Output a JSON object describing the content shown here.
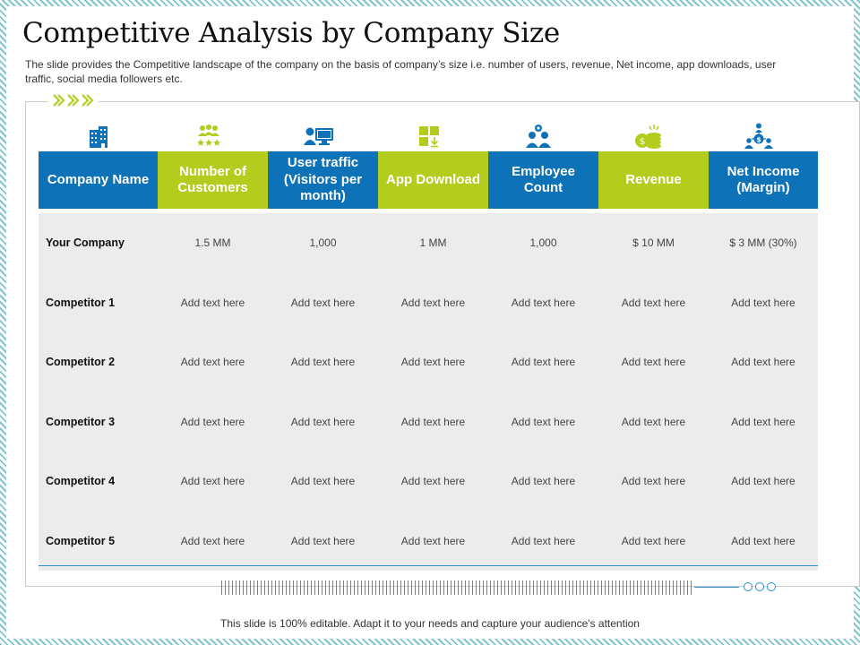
{
  "title": "Competitive Analysis by Company Size",
  "subtitle": "The slide provides  the Competitive  landscape of the company on the basis of company’s size i.e. number of users, revenue,  Net income, app downloads,  user traffic,  social media followers  etc.",
  "icons": [
    "building-icon",
    "people-stars-icon",
    "user-computer-icon",
    "app-download-icon",
    "employee-group-icon",
    "coins-revenue-icon",
    "net-income-people-icon"
  ],
  "table": {
    "headers": [
      "Company Name",
      "Number of Customers",
      "User traffic (Visitors per month)",
      "App Download",
      "Employee Count",
      "Revenue",
      "Net Income (Margin)"
    ],
    "header_colors": [
      "#0e72b8",
      "#b3cc1e",
      "#0e72b8",
      "#b3cc1e",
      "#0e72b8",
      "#b3cc1e",
      "#0e72b8"
    ],
    "rows": [
      [
        "Your Company",
        "1.5 MM",
        "1,000",
        "1 MM",
        "1,000",
        "$ 10 MM",
        "$ 3 MM (30%)"
      ],
      [
        "Competitor 1",
        "Add text here",
        "Add text here",
        "Add text here",
        "Add text here",
        "Add text here",
        "Add text here"
      ],
      [
        "Competitor 2",
        "Add text here",
        "Add text here",
        "Add text here",
        "Add text here",
        "Add text here",
        "Add text here"
      ],
      [
        "Competitor 3",
        "Add text here",
        "Add text here",
        "Add text here",
        "Add text here",
        "Add text here",
        "Add text here"
      ],
      [
        "Competitor 4",
        "Add text here",
        "Add text here",
        "Add text here",
        "Add text here",
        "Add text here",
        "Add text here"
      ],
      [
        "Competitor 5",
        "Add text here",
        "Add text here",
        "Add text here",
        "Add text here",
        "Add text here",
        "Add text here"
      ]
    ]
  },
  "footer": "This slide is 100% editable. Adapt it to your needs and capture your audience's attention",
  "colors": {
    "blue": "#0e72b8",
    "green": "#b3cc1e",
    "accent_line": "#2b8fc9"
  }
}
